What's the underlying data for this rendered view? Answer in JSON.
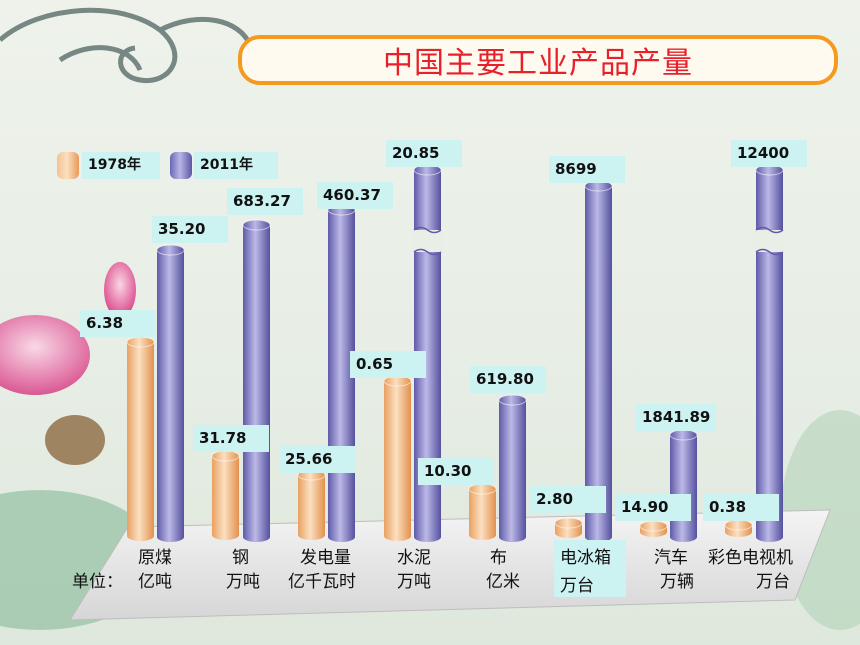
{
  "title": "中国主要工业产品产量",
  "unit_prefix": "单位：",
  "chart_data": {
    "type": "bar",
    "title": "中国主要工业产品产量",
    "legend": [
      "1978年",
      "2011年"
    ],
    "categories": [
      "原煤",
      "钢",
      "发电量",
      "水泥",
      "布",
      "电冰箱",
      "汽车",
      "彩色电视机"
    ],
    "units": [
      "亿吨",
      "万吨",
      "亿千瓦时",
      "万吨",
      "亿米",
      "万台",
      "万辆",
      "万台"
    ],
    "series": [
      {
        "name": "1978年",
        "values": [
          "6.38",
          "31.78",
          "25.66",
          "0.65",
          "10.30",
          "2.80",
          "14.90",
          "0.38"
        ],
        "color": "#f5b57a"
      },
      {
        "name": "2011年",
        "values": [
          "35.20",
          "683.27",
          "460.37",
          "20.85",
          "619.80",
          "8699",
          "1841.89",
          "12400"
        ],
        "color": "#8a87cc"
      }
    ],
    "axis_broken_bars": [
      "水泥",
      "彩色电视机"
    ]
  }
}
